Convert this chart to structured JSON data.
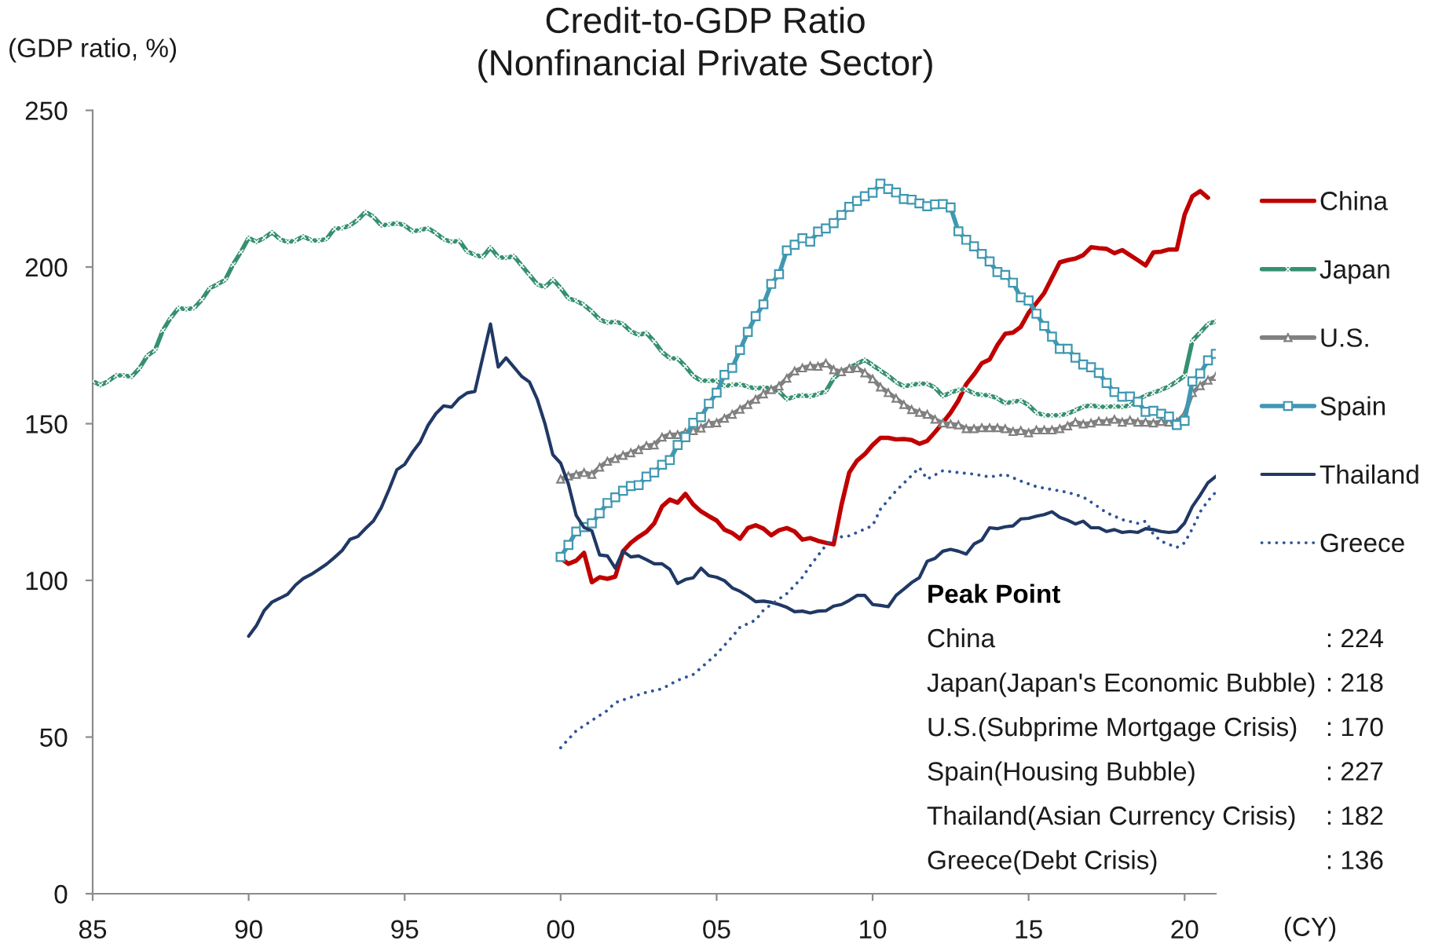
{
  "chart_data": {
    "type": "line",
    "title": "Credit-to-GDP Ratio",
    "subtitle": "(Nonfinancial Private Sector)",
    "ylabel": "(GDP ratio, %)",
    "xlim": [
      1985,
      2021
    ],
    "xticks": [
      {
        "value": 1985,
        "label": "85"
      },
      {
        "value": 1990,
        "label": "90"
      },
      {
        "value": 1995,
        "label": "95"
      },
      {
        "value": 2000,
        "label": "00"
      },
      {
        "value": 2005,
        "label": "05"
      },
      {
        "value": 2010,
        "label": "10"
      },
      {
        "value": 2015,
        "label": "15"
      },
      {
        "value": 2020,
        "label": "20"
      }
    ],
    "ylim": [
      0,
      250
    ],
    "yticks": [
      0,
      50,
      100,
      150,
      200,
      250
    ],
    "grid": false,
    "legend": "right",
    "series": [
      {
        "name": "China",
        "color": "#c00000",
        "marker": "none",
        "line_style": "solid",
        "x": [
          2000.0,
          2000.25,
          2000.5,
          2000.75,
          2001.0,
          2001.25,
          2001.5,
          2001.75,
          2002.0,
          2002.25,
          2002.5,
          2002.75,
          2003.0,
          2003.25,
          2003.5,
          2003.75,
          2004.0,
          2004.25,
          2004.5,
          2004.75,
          2005.0,
          2005.25,
          2005.5,
          2005.75,
          2006.0,
          2006.25,
          2006.5,
          2006.75,
          2007.0,
          2007.25,
          2007.5,
          2007.75,
          2008.0,
          2008.25,
          2008.5,
          2008.75,
          2009.0,
          2009.25,
          2009.5,
          2009.75,
          2010.0,
          2010.25,
          2010.5,
          2010.75,
          2011.0,
          2011.25,
          2011.5,
          2011.75,
          2012.0,
          2012.25,
          2012.5,
          2012.75,
          2013.0,
          2013.25,
          2013.5,
          2013.75,
          2014.0,
          2014.25,
          2014.5,
          2014.75,
          2015.0,
          2015.25,
          2015.5,
          2015.75,
          2016.0,
          2016.25,
          2016.5,
          2016.75,
          2017.0,
          2017.25,
          2017.5,
          2017.75,
          2018.0,
          2018.25,
          2018.5,
          2018.75,
          2019.0,
          2019.25,
          2019.5,
          2019.75,
          2020.0,
          2020.25,
          2020.5,
          2020.75
        ],
        "values": [
          107.0,
          105.3,
          106.3,
          108.8,
          99.4,
          101.0,
          100.5,
          101.2,
          109.3,
          112.0,
          113.9,
          115.5,
          118.2,
          123.6,
          125.8,
          124.8,
          127.6,
          124.2,
          122.0,
          120.5,
          119.1,
          116.2,
          115.1,
          113.3,
          116.7,
          117.6,
          116.5,
          114.4,
          116.0,
          116.7,
          115.6,
          113.0,
          113.5,
          112.6,
          112.0,
          111.5,
          124.0,
          134.4,
          138.2,
          140.3,
          143.2,
          145.5,
          145.5,
          145.0,
          145.1,
          144.8,
          143.6,
          144.5,
          147.3,
          150.3,
          153.5,
          157.4,
          162.6,
          165.7,
          169.3,
          170.5,
          175.1,
          178.7,
          179.1,
          180.9,
          185.4,
          188.5,
          191.7,
          196.6,
          201.5,
          202.2,
          202.7,
          203.8,
          206.3,
          206.0,
          205.8,
          204.4,
          205.4,
          203.8,
          202.2,
          200.5,
          204.7,
          204.9,
          205.6,
          205.6,
          216.7,
          222.6,
          224.2,
          222.1
        ]
      },
      {
        "name": "Japan",
        "color": "#36906f",
        "marker": "cross",
        "line_style": "solid",
        "x": [
          1985.0,
          1985.25,
          1985.5,
          1985.75,
          1986.0,
          1986.25,
          1986.5,
          1986.75,
          1987.0,
          1987.25,
          1987.5,
          1987.75,
          1988.0,
          1988.25,
          1988.5,
          1988.75,
          1989.0,
          1989.25,
          1989.5,
          1989.75,
          1990.0,
          1990.25,
          1990.5,
          1990.75,
          1991.0,
          1991.25,
          1991.5,
          1991.75,
          1992.0,
          1992.25,
          1992.5,
          1992.75,
          1993.0,
          1993.25,
          1993.5,
          1993.75,
          1994.0,
          1994.25,
          1994.5,
          1994.75,
          1995.0,
          1995.25,
          1995.5,
          1995.75,
          1996.0,
          1996.25,
          1996.5,
          1996.75,
          1997.0,
          1997.25,
          1997.5,
          1997.75,
          1998.0,
          1998.25,
          1998.5,
          1998.75,
          1999.0,
          1999.25,
          1999.5,
          1999.75,
          2000.0,
          2000.25,
          2000.5,
          2000.75,
          2001.0,
          2001.25,
          2001.5,
          2001.75,
          2002.0,
          2002.25,
          2002.5,
          2002.75,
          2003.0,
          2003.25,
          2003.5,
          2003.75,
          2004.0,
          2004.25,
          2004.5,
          2004.75,
          2005.0,
          2005.25,
          2005.5,
          2005.75,
          2006.0,
          2006.25,
          2006.5,
          2006.75,
          2007.0,
          2007.25,
          2007.5,
          2007.75,
          2008.0,
          2008.25,
          2008.5,
          2008.75,
          2009.0,
          2009.25,
          2009.5,
          2009.75,
          2010.0,
          2010.25,
          2010.5,
          2010.75,
          2011.0,
          2011.25,
          2011.5,
          2011.75,
          2012.0,
          2012.25,
          2012.5,
          2012.75,
          2013.0,
          2013.25,
          2013.5,
          2013.75,
          2014.0,
          2014.25,
          2014.5,
          2014.75,
          2015.0,
          2015.25,
          2015.5,
          2015.75,
          2016.0,
          2016.25,
          2016.5,
          2016.75,
          2017.0,
          2017.25,
          2017.5,
          2017.75,
          2018.0,
          2018.25,
          2018.5,
          2018.75,
          2019.0,
          2019.25,
          2019.5,
          2019.75,
          2020.0,
          2020.25,
          2020.5,
          2020.75,
          2021.0
        ],
        "values": [
          163.6,
          162.3,
          163.6,
          165.4,
          165.4,
          165.0,
          167.7,
          171.7,
          173.5,
          179.8,
          183.8,
          186.9,
          186.5,
          186.9,
          189.6,
          193.2,
          194.5,
          195.9,
          200.8,
          204.8,
          209.3,
          208.0,
          209.3,
          211.1,
          208.9,
          208.0,
          208.4,
          209.8,
          208.6,
          208.4,
          209.0,
          212.2,
          212.4,
          213.3,
          215.1,
          217.6,
          216.0,
          213.3,
          213.6,
          214.0,
          213.3,
          211.4,
          211.8,
          212.4,
          210.8,
          208.9,
          208.0,
          208.4,
          205.0,
          203.9,
          203.2,
          206.2,
          203.2,
          202.9,
          203.5,
          200.5,
          197.5,
          194.5,
          193.6,
          196.0,
          193.3,
          190.0,
          189.2,
          187.9,
          185.8,
          183.3,
          182.2,
          182.6,
          181.8,
          179.5,
          178.3,
          179.0,
          176.2,
          172.9,
          170.9,
          170.8,
          168.3,
          165.3,
          163.7,
          163.8,
          163.7,
          162.0,
          162.4,
          162.6,
          161.8,
          161.2,
          161.6,
          161.3,
          160.3,
          157.8,
          158.7,
          159.1,
          158.7,
          159.5,
          160.3,
          164.5,
          166.6,
          167.8,
          169.1,
          170.4,
          168.7,
          167.0,
          165.3,
          163.3,
          161.9,
          162.4,
          162.8,
          162.8,
          161.5,
          158.8,
          159.9,
          160.8,
          161.0,
          159.6,
          159.2,
          159.0,
          158.1,
          156.5,
          157.0,
          157.4,
          155.9,
          153.5,
          152.7,
          152.7,
          152.7,
          153.2,
          154.3,
          155.4,
          155.9,
          155.4,
          155.4,
          155.6,
          155.4,
          155.9,
          157.7,
          159.0,
          159.9,
          160.8,
          161.9,
          163.5,
          165.3,
          176.5,
          179.1,
          181.8,
          182.7
        ]
      },
      {
        "name": "U.S.",
        "color": "#808080",
        "marker": "triangle",
        "line_style": "solid",
        "x": [
          2000.0,
          2000.25,
          2000.5,
          2000.75,
          2001.0,
          2001.25,
          2001.5,
          2001.75,
          2002.0,
          2002.25,
          2002.5,
          2002.75,
          2003.0,
          2003.25,
          2003.5,
          2003.75,
          2004.0,
          2004.25,
          2004.5,
          2004.75,
          2005.0,
          2005.25,
          2005.5,
          2005.75,
          2006.0,
          2006.25,
          2006.5,
          2006.75,
          2007.0,
          2007.25,
          2007.5,
          2007.75,
          2008.0,
          2008.25,
          2008.5,
          2008.75,
          2009.0,
          2009.25,
          2009.5,
          2009.75,
          2010.0,
          2010.25,
          2010.5,
          2010.75,
          2011.0,
          2011.25,
          2011.5,
          2011.75,
          2012.0,
          2012.25,
          2012.5,
          2012.75,
          2013.0,
          2013.25,
          2013.5,
          2013.75,
          2014.0,
          2014.25,
          2014.5,
          2014.75,
          2015.0,
          2015.25,
          2015.5,
          2015.75,
          2016.0,
          2016.25,
          2016.5,
          2016.75,
          2017.0,
          2017.25,
          2017.5,
          2017.75,
          2018.0,
          2018.25,
          2018.5,
          2018.75,
          2019.0,
          2019.25,
          2019.5,
          2019.75,
          2020.0,
          2020.25,
          2020.5,
          2020.75,
          2021.0
        ],
        "values": [
          132.3,
          133.3,
          133.8,
          134.4,
          133.8,
          136.1,
          138.0,
          138.9,
          139.9,
          140.7,
          141.7,
          143.0,
          143.2,
          145.7,
          146.5,
          146.5,
          147.2,
          147.8,
          148.6,
          150.1,
          150.3,
          151.7,
          153.0,
          154.6,
          156.1,
          157.8,
          159.5,
          160.9,
          162.0,
          164.5,
          166.8,
          167.8,
          168.4,
          168.3,
          169.3,
          167.2,
          166.6,
          167.6,
          167.8,
          166.2,
          164.3,
          161.7,
          159.9,
          158.1,
          156.1,
          154.5,
          153.6,
          153.0,
          151.4,
          150.2,
          149.9,
          149.6,
          148.4,
          148.4,
          148.7,
          148.7,
          148.7,
          148.4,
          147.5,
          147.8,
          147.1,
          148.0,
          148.0,
          148.0,
          148.4,
          149.3,
          150.5,
          149.9,
          150.2,
          150.8,
          150.7,
          151.4,
          150.5,
          151.1,
          150.5,
          150.5,
          150.2,
          150.7,
          150.5,
          150.5,
          153.0,
          159.9,
          162.1,
          163.9,
          165.1
        ]
      },
      {
        "name": "Spain",
        "color": "#3f98b1",
        "marker": "square",
        "line_style": "solid",
        "x": [
          2000.0,
          2000.25,
          2000.5,
          2000.75,
          2001.0,
          2001.25,
          2001.5,
          2001.75,
          2002.0,
          2002.25,
          2002.5,
          2002.75,
          2003.0,
          2003.25,
          2003.5,
          2003.75,
          2004.0,
          2004.25,
          2004.5,
          2004.75,
          2005.0,
          2005.25,
          2005.5,
          2005.75,
          2006.0,
          2006.25,
          2006.5,
          2006.75,
          2007.0,
          2007.25,
          2007.5,
          2007.75,
          2008.0,
          2008.25,
          2008.5,
          2008.75,
          2009.0,
          2009.25,
          2009.5,
          2009.75,
          2010.0,
          2010.25,
          2010.5,
          2010.75,
          2011.0,
          2011.25,
          2011.5,
          2011.75,
          2012.0,
          2012.25,
          2012.5,
          2012.75,
          2013.0,
          2013.25,
          2013.5,
          2013.75,
          2014.0,
          2014.25,
          2014.5,
          2014.75,
          2015.0,
          2015.25,
          2015.5,
          2015.75,
          2016.0,
          2016.25,
          2016.5,
          2016.75,
          2017.0,
          2017.25,
          2017.5,
          2017.75,
          2018.0,
          2018.25,
          2018.5,
          2018.75,
          2019.0,
          2019.25,
          2019.5,
          2019.75,
          2020.0,
          2020.25,
          2020.5,
          2020.75,
          2021.0
        ],
        "values": [
          107.5,
          111.3,
          115.6,
          117.0,
          118.2,
          121.4,
          124.7,
          126.5,
          128.6,
          130.1,
          130.4,
          133.1,
          134.4,
          136.9,
          138.4,
          143.2,
          145.7,
          150.3,
          152.1,
          156.4,
          159.9,
          165.6,
          167.8,
          173.5,
          179.3,
          184.3,
          188.1,
          194.6,
          197.7,
          205.3,
          207.1,
          209.2,
          208.1,
          211.3,
          212.3,
          214.0,
          216.6,
          219.2,
          221.1,
          222.6,
          223.7,
          226.6,
          224.9,
          223.8,
          221.7,
          221.5,
          220.3,
          219.4,
          220.0,
          220.1,
          219.0,
          211.4,
          208.7,
          206.6,
          204.2,
          201.8,
          198.4,
          197.5,
          195.0,
          190.3,
          189.3,
          185.1,
          181.2,
          177.8,
          173.9,
          173.9,
          171.1,
          168.9,
          168.0,
          166.2,
          163.0,
          160.1,
          158.6,
          158.7,
          157.0,
          153.8,
          154.1,
          153.2,
          152.3,
          149.6,
          150.9,
          163.5,
          166.0,
          170.2,
          172.3
        ]
      },
      {
        "name": "Thailand",
        "color": "#203864",
        "marker": "none",
        "line_style": "solid",
        "x": [
          1990.0,
          1990.25,
          1990.5,
          1990.75,
          1991.0,
          1991.25,
          1991.5,
          1991.75,
          1992.0,
          1992.25,
          1992.5,
          1992.75,
          1993.0,
          1993.25,
          1993.5,
          1993.75,
          1994.0,
          1994.25,
          1994.5,
          1994.75,
          1995.0,
          1995.25,
          1995.5,
          1995.75,
          1996.0,
          1996.25,
          1996.5,
          1996.75,
          1997.0,
          1997.25,
          1997.75,
          1998.0,
          1998.25,
          1998.5,
          1998.75,
          1999.0,
          1999.25,
          1999.5,
          1999.75,
          2000.0,
          2000.25,
          2000.5,
          2000.75,
          2001.0,
          2001.25,
          2001.5,
          2001.75,
          2002.0,
          2002.25,
          2002.5,
          2002.75,
          2003.0,
          2003.25,
          2003.5,
          2003.75,
          2004.0,
          2004.25,
          2004.5,
          2004.75,
          2005.0,
          2005.25,
          2005.5,
          2005.75,
          2006.0,
          2006.25,
          2006.5,
          2006.75,
          2007.0,
          2007.25,
          2007.5,
          2007.75,
          2008.0,
          2008.25,
          2008.5,
          2008.75,
          2009.0,
          2009.25,
          2009.5,
          2009.75,
          2010.0,
          2010.25,
          2010.5,
          2010.75,
          2011.0,
          2011.25,
          2011.5,
          2011.75,
          2012.0,
          2012.25,
          2012.5,
          2012.75,
          2013.0,
          2013.25,
          2013.5,
          2013.75,
          2014.0,
          2014.25,
          2014.5,
          2014.75,
          2015.0,
          2015.25,
          2015.5,
          2015.75,
          2016.0,
          2016.25,
          2016.5,
          2016.75,
          2017.0,
          2017.25,
          2017.5,
          2017.75,
          2018.0,
          2018.25,
          2018.5,
          2018.75,
          2019.0,
          2019.25,
          2019.5,
          2019.75,
          2020.0,
          2020.25,
          2020.5,
          2020.75,
          2021.0
        ],
        "values": [
          82.2,
          85.6,
          90.4,
          93.1,
          94.3,
          95.6,
          98.5,
          100.6,
          101.9,
          103.5,
          105.2,
          107.3,
          109.6,
          113.1,
          114.0,
          116.6,
          119.0,
          123.2,
          129.0,
          135.3,
          137.0,
          140.9,
          144.2,
          149.5,
          153.2,
          155.7,
          155.3,
          158.1,
          159.8,
          160.3,
          181.8,
          168.1,
          171.0,
          168.1,
          165.1,
          163.3,
          157.8,
          149.9,
          140.1,
          137.4,
          130.7,
          120.7,
          116.9,
          115.8,
          108.1,
          107.8,
          103.9,
          109.3,
          107.5,
          107.8,
          106.6,
          105.3,
          105.3,
          103.5,
          99.0,
          100.3,
          100.8,
          103.9,
          101.5,
          101.0,
          99.9,
          97.6,
          96.5,
          95.0,
          93.2,
          93.4,
          93.0,
          92.3,
          91.4,
          90.0,
          90.2,
          89.6,
          90.2,
          90.3,
          91.8,
          92.3,
          93.6,
          95.2,
          95.2,
          92.3,
          92.0,
          91.6,
          95.2,
          97.2,
          99.3,
          100.9,
          106.1,
          107.0,
          109.3,
          109.9,
          109.3,
          108.4,
          111.6,
          112.9,
          116.8,
          116.5,
          117.1,
          117.4,
          119.6,
          119.8,
          120.5,
          121.0,
          121.9,
          120.1,
          119.2,
          118.0,
          118.9,
          116.8,
          116.8,
          115.6,
          116.2,
          115.3,
          115.6,
          115.3,
          116.5,
          116.2,
          115.6,
          115.3,
          115.6,
          118.3,
          123.6,
          127.2,
          131.2,
          133.2
        ]
      },
      {
        "name": "Greece",
        "color": "#2f5597",
        "marker": "none",
        "line_style": "dotted",
        "x": [
          2000.0,
          2000.5,
          2001.0,
          2001.5,
          2001.75,
          2002.25,
          2002.75,
          2003.25,
          2003.75,
          2004.25,
          2004.5,
          2005.0,
          2005.25,
          2005.5,
          2005.75,
          2006.25,
          2006.5,
          2006.75,
          2007.25,
          2007.75,
          2008.0,
          2008.5,
          2008.75,
          2009.25,
          2010.0,
          2010.25,
          2010.75,
          2011.0,
          2011.5,
          2011.75,
          2012.25,
          2012.75,
          2013.25,
          2013.75,
          2014.25,
          2014.75,
          2015.25,
          2015.75,
          2016.25,
          2016.75,
          2017.0,
          2017.5,
          2018.0,
          2018.5,
          2018.75,
          2019.0,
          2019.25,
          2019.75,
          2020.0,
          2020.25,
          2020.5,
          2020.75,
          2021.0
        ],
        "values": [
          46.6,
          52.0,
          55.3,
          58.5,
          61.0,
          62.7,
          64.3,
          65.4,
          68.1,
          70.0,
          72.1,
          76.5,
          79.3,
          82.0,
          85.1,
          87.3,
          90.5,
          92.3,
          95.8,
          101.0,
          104.7,
          111.2,
          113.6,
          114.2,
          117.5,
          122.7,
          128.6,
          131.0,
          136.0,
          132.3,
          135.0,
          134.4,
          133.9,
          133.0,
          133.8,
          131.7,
          129.9,
          129.0,
          128.1,
          126.6,
          125.0,
          121.6,
          119.4,
          118.2,
          118.9,
          114.7,
          112.5,
          110.5,
          112.0,
          116.5,
          121.9,
          125.4,
          128.2
        ]
      }
    ],
    "annotations": [
      "(CY)",
      "Peak Point",
      "China",
      ": 224",
      "Japan(Japan's Economic Bubble)",
      ": 218",
      "U.S.(Subprime Mortgage Crisis)",
      ": 170",
      "Spain(Housing Bubble)",
      ": 227",
      "Thailand(Asian Currency Crisis)",
      ": 182",
      "Greece(Debt Crisis)",
      ": 136"
    ]
  }
}
